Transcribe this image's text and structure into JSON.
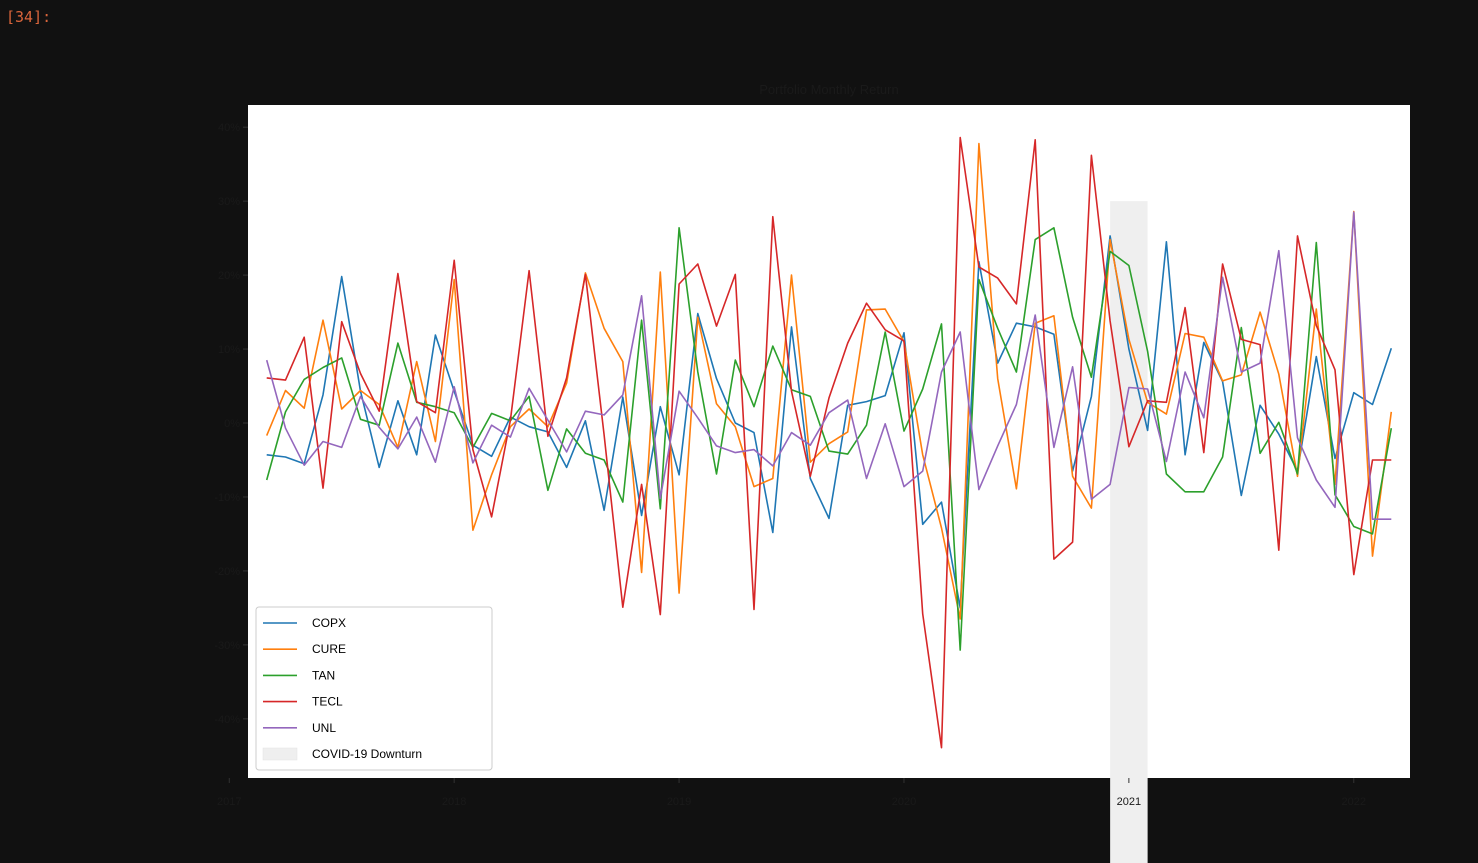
{
  "cell": {
    "prompt": "[34]:"
  },
  "chart_data": {
    "type": "line",
    "title": "Portfolio Monthly Return",
    "xlabel": "",
    "ylabel": "",
    "x_start": "2017-03",
    "x_range": [
      "2017-02",
      "2022-04"
    ],
    "ylim": [
      -48,
      43
    ],
    "x_ticks": [
      {
        "date": "2017-01",
        "label": "2017"
      },
      {
        "date": "2018-01",
        "label": "2018"
      },
      {
        "date": "2019-01",
        "label": "2019"
      },
      {
        "date": "2020-01",
        "label": "2020"
      },
      {
        "date": "2021-01",
        "label": "2021"
      },
      {
        "date": "2022-01",
        "label": "2022"
      }
    ],
    "y_ticks": [
      {
        "value": 40,
        "label": "40%"
      },
      {
        "value": 30,
        "label": "30%"
      },
      {
        "value": 20,
        "label": "20%"
      },
      {
        "value": 10,
        "label": "10%"
      },
      {
        "value": 0,
        "label": "0%"
      },
      {
        "value": -10,
        "label": "-10%"
      },
      {
        "value": -20,
        "label": "-20%"
      },
      {
        "value": -30,
        "label": "-30%"
      },
      {
        "value": -40,
        "label": "-40%"
      }
    ],
    "series": [
      {
        "name": "COPX",
        "color": "#1f77b4",
        "values": [
          -4.3,
          -4.6,
          -5.5,
          3.8,
          19.8,
          4.3,
          -6.0,
          3.0,
          -4.3,
          11.9,
          4.3,
          -3.0,
          -4.5,
          0.8,
          -0.5,
          -1.2,
          -6.0,
          0.3,
          -11.8,
          3.5,
          -12.5,
          2.2,
          -7.0,
          14.8,
          6.0,
          0.0,
          -1.3,
          -14.8,
          13.0,
          -7.5,
          -12.9,
          2.4,
          2.9,
          3.7,
          12.2,
          -13.7,
          -10.7,
          -25.0,
          21.8,
          8.1,
          13.5,
          13.0,
          12.0,
          -6.5,
          3.6,
          25.3,
          10.0,
          -1.0,
          24.5,
          -4.3,
          10.9,
          5.6,
          -9.8,
          2.4,
          -1.5,
          -6.5,
          9.0,
          -4.8,
          4.1,
          2.5,
          10.1
        ]
      },
      {
        "name": "CURE",
        "color": "#ff7f0e",
        "values": [
          -1.7,
          4.4,
          2.0,
          13.9,
          1.9,
          4.4,
          2.5,
          -3.3,
          8.3,
          -2.5,
          19.4,
          -14.5,
          -7.0,
          -0.5,
          1.9,
          -0.5,
          5.4,
          20.3,
          12.8,
          8.3,
          -20.2,
          20.4,
          -23.0,
          14.3,
          2.6,
          -0.5,
          -8.6,
          -7.5,
          20.0,
          -5.3,
          -2.8,
          -1.2,
          15.3,
          15.4,
          11.0,
          -4.3,
          -14.2,
          -26.5,
          37.8,
          6.0,
          -8.9,
          13.5,
          14.5,
          -7.2,
          -11.5,
          24.8,
          11.3,
          2.8,
          1.2,
          12.1,
          11.6,
          5.7,
          6.5,
          15.0,
          6.6,
          -7.2,
          15.4,
          -8.3,
          28.6,
          -18.0,
          1.5
        ]
      },
      {
        "name": "TAN",
        "color": "#2ca02c",
        "values": [
          -7.7,
          1.5,
          5.9,
          7.5,
          8.8,
          0.5,
          -0.3,
          10.8,
          2.8,
          2.2,
          1.4,
          -3.3,
          1.3,
          0.3,
          3.6,
          -9.1,
          -0.8,
          -4.1,
          -5.0,
          -10.7,
          13.9,
          -11.6,
          26.4,
          6.9,
          -6.9,
          8.5,
          2.2,
          10.4,
          4.5,
          3.6,
          -3.8,
          -4.2,
          -0.3,
          12.3,
          -1.1,
          4.6,
          13.4,
          -30.7,
          19.4,
          12.8,
          6.9,
          24.8,
          26.4,
          14.3,
          6.2,
          23.2,
          21.3,
          9.7,
          -6.9,
          -9.3,
          -9.3,
          -4.6,
          12.9,
          -4.1,
          0.1,
          -6.9,
          24.4,
          -9.7,
          -14.0,
          -15.0,
          -0.7
        ]
      },
      {
        "name": "TECL",
        "color": "#d62728",
        "values": [
          6.1,
          5.8,
          11.6,
          -8.8,
          13.7,
          6.7,
          1.6,
          20.2,
          2.9,
          1.4,
          22.0,
          -3.6,
          -12.7,
          0.4,
          20.6,
          -1.8,
          6.1,
          20.1,
          -1.6,
          -24.9,
          -8.3,
          -25.9,
          18.8,
          21.5,
          13.1,
          20.1,
          -25.2,
          27.9,
          4.3,
          -7.2,
          3.4,
          10.8,
          16.2,
          12.6,
          11.1,
          -25.8,
          -43.9,
          38.6,
          21.1,
          19.6,
          16.1,
          38.3,
          -18.4,
          -16.1,
          36.2,
          13.8,
          -3.2,
          3.0,
          2.8,
          15.6,
          -4.0,
          21.5,
          11.3,
          10.6,
          -17.2,
          25.3,
          13.2,
          7.2,
          -20.5,
          -5.0,
          -5.0
        ]
      },
      {
        "name": "UNL",
        "color": "#9467bd",
        "values": [
          8.5,
          -0.7,
          -5.7,
          -2.5,
          -3.3,
          3.6,
          -0.6,
          -3.5,
          0.8,
          -5.3,
          4.9,
          -5.4,
          -0.3,
          -1.9,
          4.7,
          0.4,
          -3.9,
          1.6,
          1.1,
          3.8,
          17.2,
          -10.2,
          4.3,
          0.7,
          -3.1,
          -4.0,
          -3.6,
          -5.8,
          -1.3,
          -3.0,
          1.4,
          3.1,
          -7.5,
          -0.1,
          -8.6,
          -6.5,
          6.9,
          12.3,
          -9.0,
          -3.1,
          2.5,
          14.6,
          -3.3,
          7.6,
          -10.3,
          -8.3,
          4.8,
          4.6,
          -5.2,
          6.9,
          0.7,
          19.7,
          6.9,
          8.1,
          23.3,
          -2.0,
          -7.7,
          -11.4,
          28.5,
          -13.0,
          -13.0
        ]
      }
    ],
    "shaded_region": {
      "label": "COVID-19 Downturn",
      "color": "#efefef",
      "x_from": "2020-12",
      "x_to": "2021-02",
      "y_to": 30
    },
    "legend": {
      "placement": "lower-left"
    }
  }
}
